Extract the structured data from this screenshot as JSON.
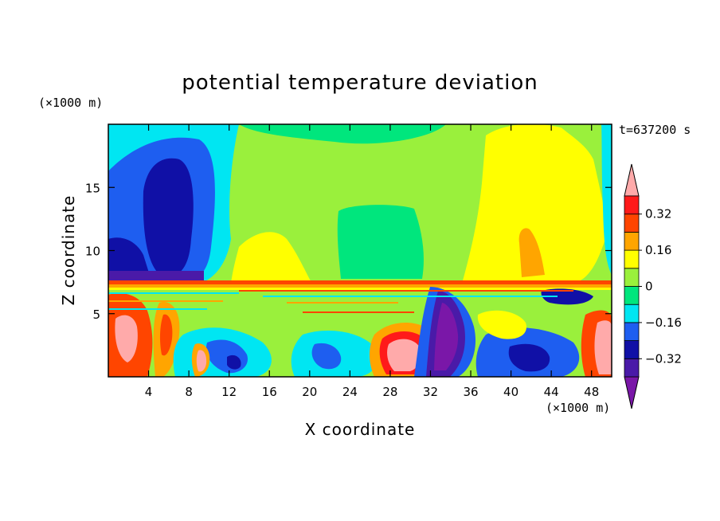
{
  "chart_data": {
    "type": "heatmap",
    "title": "potential temperature deviation",
    "xlabel": "X coordinate",
    "ylabel": "Z coordinate",
    "x_units": "(×1000 m)",
    "y_units": "(×1000 m)",
    "time_label": "t=637200 s",
    "xlim": [
      0,
      50
    ],
    "ylim": [
      0,
      20
    ],
    "x_ticks": [
      4,
      8,
      12,
      16,
      20,
      24,
      28,
      32,
      36,
      40,
      44,
      48
    ],
    "y_ticks": [
      5,
      10,
      15
    ],
    "colorbar": {
      "levels": [
        -0.4,
        -0.32,
        -0.24,
        -0.16,
        -0.08,
        0,
        0.08,
        0.16,
        0.24,
        0.32,
        0.4
      ],
      "tick_labels": [
        "0.32",
        "0.16",
        "0",
        "−0.16",
        "−0.32"
      ],
      "tick_values": [
        0.32,
        0.16,
        0,
        -0.16,
        -0.32
      ],
      "colors": [
        "#7a17a8",
        "#4a1aa8",
        "#1010a6",
        "#1e5ef0",
        "#00e6f2",
        "#00e67d",
        "#9af03c",
        "#ffff00",
        "#ffa500",
        "#ff4500",
        "#ff1a1a",
        "#ffaaaa"
      ],
      "extend": "both"
    },
    "grid": false,
    "legend_placement": "right"
  }
}
